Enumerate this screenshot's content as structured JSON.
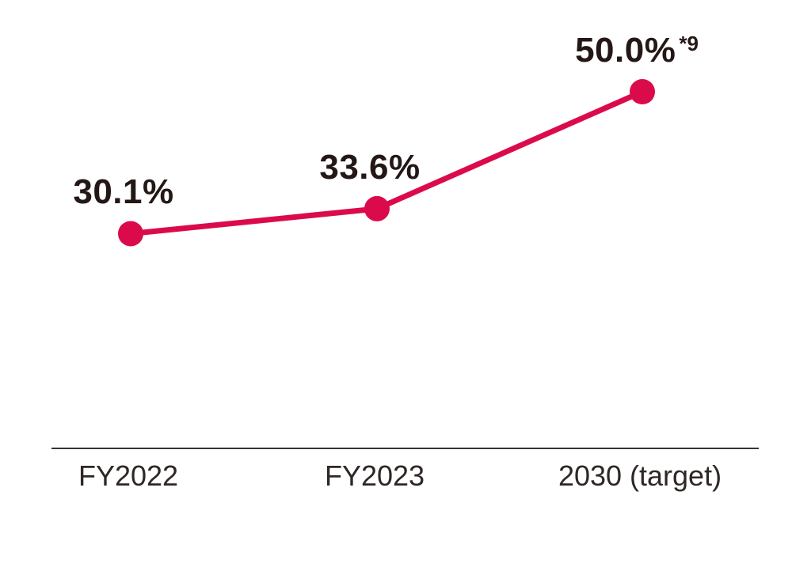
{
  "chart_data": {
    "type": "line",
    "title": "",
    "xlabel": "",
    "ylabel": "",
    "unit": "%",
    "categories": [
      "FY2022",
      "FY2023",
      "2030 (target)"
    ],
    "values": [
      30.1,
      33.6,
      50.0
    ],
    "value_labels": [
      "30.1%",
      "33.6%",
      "50.0%"
    ],
    "footnote_markers": [
      "",
      "",
      "*9"
    ],
    "ylim": [
      0,
      55
    ],
    "grid": false,
    "legend_position": "none",
    "colors": {
      "line": "#DB0B4B",
      "marker": "#DB0B4B",
      "value_label_text": "#231815",
      "axis_line": "#3B3331",
      "axis_label_text": "#2F2725",
      "background": "#FFFFFF"
    }
  }
}
